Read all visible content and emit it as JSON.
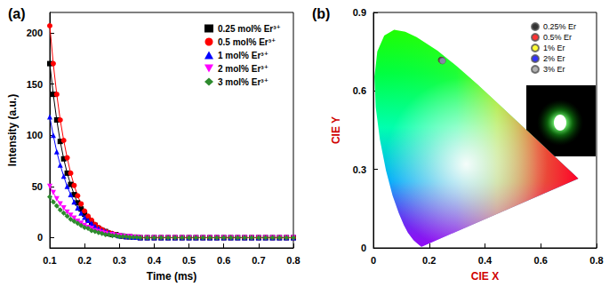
{
  "chart_data": [
    {
      "type": "line",
      "title": "(a)",
      "x_label": "Time (ms)",
      "y_label": "Intensity (a.u.)",
      "xlim": [
        0.1,
        0.8
      ],
      "xticks": [
        0.1,
        0.2,
        0.3,
        0.4,
        0.5,
        0.6,
        0.7,
        0.8
      ],
      "ylim": [
        -10,
        220
      ],
      "yticks": [
        0,
        50,
        100,
        150,
        200
      ],
      "grid": false,
      "legend": "upper right",
      "x": [
        0.1,
        0.11,
        0.12,
        0.13,
        0.14,
        0.15,
        0.16,
        0.17,
        0.18,
        0.19,
        0.2,
        0.21,
        0.22,
        0.23,
        0.24,
        0.25,
        0.26,
        0.27,
        0.28,
        0.29,
        0.3,
        0.31,
        0.32,
        0.33,
        0.34,
        0.35,
        0.36,
        0.38,
        0.4,
        0.42,
        0.44,
        0.46,
        0.48,
        0.5,
        0.52,
        0.54,
        0.56,
        0.58,
        0.6,
        0.62,
        0.64,
        0.66,
        0.68,
        0.7,
        0.72,
        0.74,
        0.76,
        0.78,
        0.8
      ],
      "series": [
        {
          "name": "0.25 mol% Er³⁺",
          "color": "#000000",
          "marker": "square",
          "values": [
            170,
            140,
            115,
            94,
            77,
            63,
            52,
            42,
            34,
            28,
            23,
            18,
            15,
            12,
            9,
            7,
            6,
            4,
            3,
            3,
            2,
            1.5,
            1,
            1,
            0.5,
            0.5,
            0,
            0,
            0,
            0,
            0,
            0,
            0,
            0,
            0,
            0,
            0,
            0,
            0,
            0,
            0,
            0,
            0,
            0,
            0,
            0,
            0,
            0,
            0
          ]
        },
        {
          "name": "0.5 mol% Er³⁺",
          "color": "#ff0000",
          "marker": "circle",
          "values": [
            207,
            170,
            140,
            115,
            95,
            78,
            63,
            51,
            41,
            33,
            26,
            21,
            17,
            13,
            10,
            8,
            6,
            5,
            4,
            3,
            2,
            1.5,
            1,
            1,
            0.5,
            0.5,
            0,
            0,
            0,
            0,
            0,
            0,
            0,
            0,
            0,
            0,
            0,
            0,
            0,
            0,
            0,
            0,
            0,
            0,
            0,
            0,
            0,
            0,
            0
          ]
        },
        {
          "name": "1 mol% Er³⁺",
          "color": "#0000ff",
          "marker": "triangle-up",
          "values": [
            118,
            100,
            84,
            71,
            60,
            50,
            42,
            35,
            29,
            24,
            20,
            17,
            14,
            11,
            9,
            7,
            6,
            5,
            4,
            3,
            2,
            2,
            1,
            1,
            0.5,
            0.5,
            0,
            0,
            0,
            0,
            0,
            0,
            0,
            0,
            0,
            0,
            0,
            0,
            0,
            0,
            0,
            0,
            0,
            0,
            0,
            0,
            0,
            0,
            0
          ]
        },
        {
          "name": "2 mol% Er³⁺",
          "color": "#ff00ff",
          "marker": "triangle-down",
          "values": [
            50,
            44,
            38,
            33,
            29,
            25,
            22,
            19,
            16,
            14,
            12,
            10,
            9,
            7,
            6,
            5,
            4,
            3,
            3,
            2,
            2,
            1,
            1,
            1,
            0.5,
            0.5,
            0,
            0,
            0,
            0,
            0,
            0,
            0,
            0,
            0,
            0,
            0,
            0,
            0,
            0,
            0,
            0,
            0,
            0,
            0,
            0,
            0,
            0,
            0
          ]
        },
        {
          "name": "3 mol% Er³⁺",
          "color": "#2e8b2e",
          "marker": "diamond",
          "values": [
            40,
            35,
            31,
            27,
            24,
            21,
            18,
            16,
            14,
            12,
            10,
            9,
            7,
            6,
            5,
            4,
            3,
            3,
            2,
            2,
            1,
            1,
            1,
            0.5,
            0.5,
            0.5,
            0,
            0,
            0,
            0,
            0,
            0,
            0,
            0,
            0,
            0,
            0,
            0,
            0,
            0,
            0,
            0,
            0,
            0,
            0,
            0,
            0,
            0,
            0
          ]
        }
      ]
    },
    {
      "type": "scatter",
      "title": "(b)",
      "x_label": "CIE X",
      "y_label": "CIE Y",
      "xlim": [
        0,
        0.8
      ],
      "xticks": [
        0,
        0.2,
        0.4,
        0.6,
        0.8
      ],
      "ylim": [
        0,
        0.9
      ],
      "yticks": [
        0,
        0.3,
        0.6,
        0.9
      ],
      "grid": false,
      "legend": "upper right",
      "locus": {
        "x": [
          0.1741,
          0.1714,
          0.1644,
          0.1566,
          0.144,
          0.1241,
          0.1096,
          0.0913,
          0.0687,
          0.0454,
          0.0235,
          0.0082,
          0.0039,
          0.0139,
          0.0389,
          0.0743,
          0.1142,
          0.1547,
          0.2296,
          0.3016,
          0.3731,
          0.4441,
          0.5125,
          0.5752,
          0.627,
          0.6915,
          0.719,
          0.7347
        ],
        "y": [
          0.005,
          0.0051,
          0.0109,
          0.0177,
          0.0297,
          0.0578,
          0.0868,
          0.1327,
          0.2007,
          0.295,
          0.4127,
          0.5384,
          0.6548,
          0.7502,
          0.812,
          0.8338,
          0.8262,
          0.8059,
          0.7543,
          0.6923,
          0.6245,
          0.5547,
          0.4866,
          0.4242,
          0.3725,
          0.3083,
          0.2809,
          0.2653
        ]
      },
      "series": [
        {
          "name": "0.25% Er",
          "color": "#000000",
          "marker": "circle",
          "x": [
            0.243
          ],
          "y": [
            0.718
          ]
        },
        {
          "name": "0.5% Er",
          "color": "#ff0000",
          "marker": "circle",
          "x": [
            0.245
          ],
          "y": [
            0.717
          ]
        },
        {
          "name": "1% Er",
          "color": "#ffff00",
          "marker": "circle",
          "x": [
            0.246
          ],
          "y": [
            0.716
          ]
        },
        {
          "name": "2% Er",
          "color": "#0000ff",
          "marker": "circle",
          "x": [
            0.247
          ],
          "y": [
            0.716
          ]
        },
        {
          "name": "3% Er",
          "color": "#9e9e9e",
          "marker": "circle",
          "x": [
            0.248
          ],
          "y": [
            0.715
          ]
        }
      ]
    }
  ]
}
